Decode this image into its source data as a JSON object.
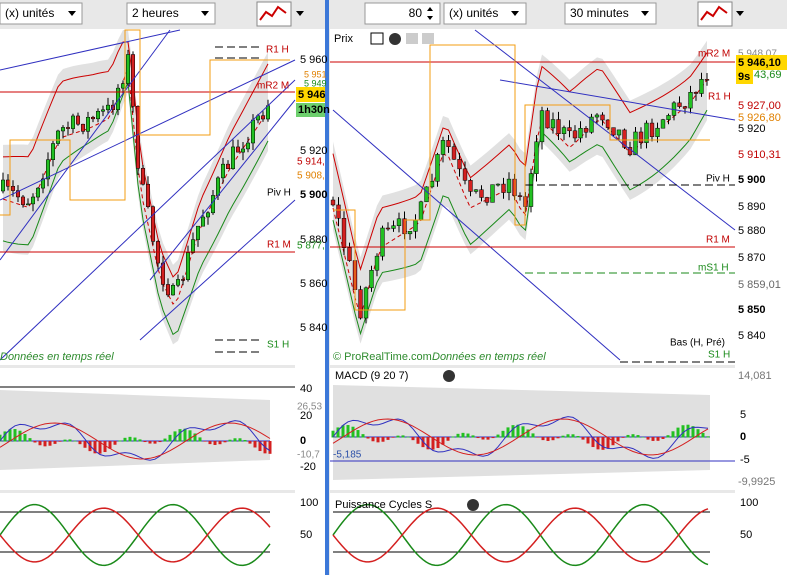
{
  "left": {
    "toolbar": {
      "units": "(x) unités",
      "timeframe": "2 heures"
    },
    "price_axis": [
      "5 960",
      "5 920",
      "5 900",
      "5 880",
      "5 860",
      "5 840"
    ],
    "price_tags": [
      "5 951",
      "5 949",
      "5 946",
      "1h30n",
      "5 914,",
      "5 908,",
      "5 877,"
    ],
    "levels": [
      "R1 H",
      "mR2 M",
      "Piv H",
      "R1 M",
      "S1 H"
    ],
    "footer": "Données en temps réel",
    "macd_axis": [
      "40",
      "26,53",
      "20",
      "0",
      "-10,7",
      "-20"
    ],
    "cycles_axis": [
      "100",
      "50"
    ]
  },
  "right": {
    "toolbar": {
      "count": "80",
      "units": "(x) unités",
      "timeframe": "30 minutes"
    },
    "panel_title": "Prix",
    "price_axis": [
      "5 948,07",
      "5 946,10",
      "9s",
      "43,69",
      "5 927,00",
      "5 926,80",
      "5 920",
      "5 910,31",
      "5 900",
      "5 890",
      "5 880",
      "5 870",
      "5 859,01",
      "5 850",
      "5 840"
    ],
    "levels": [
      "mR2 M",
      "R1 H",
      "Piv H",
      "R1 M",
      "mS1 H",
      "Bas (H, Pré)",
      "S1 H"
    ],
    "copyright": "© ProRealTime.com",
    "footer": "Données en temps réel",
    "macd_title": "MACD (9 20 7)",
    "macd_axis": [
      "14,081",
      "5",
      "0",
      "-5",
      "-9,9925"
    ],
    "macd_value": "-5,185",
    "cycles_title": "Puissance Cycles S",
    "cycles_axis": [
      "100",
      "50"
    ]
  }
}
